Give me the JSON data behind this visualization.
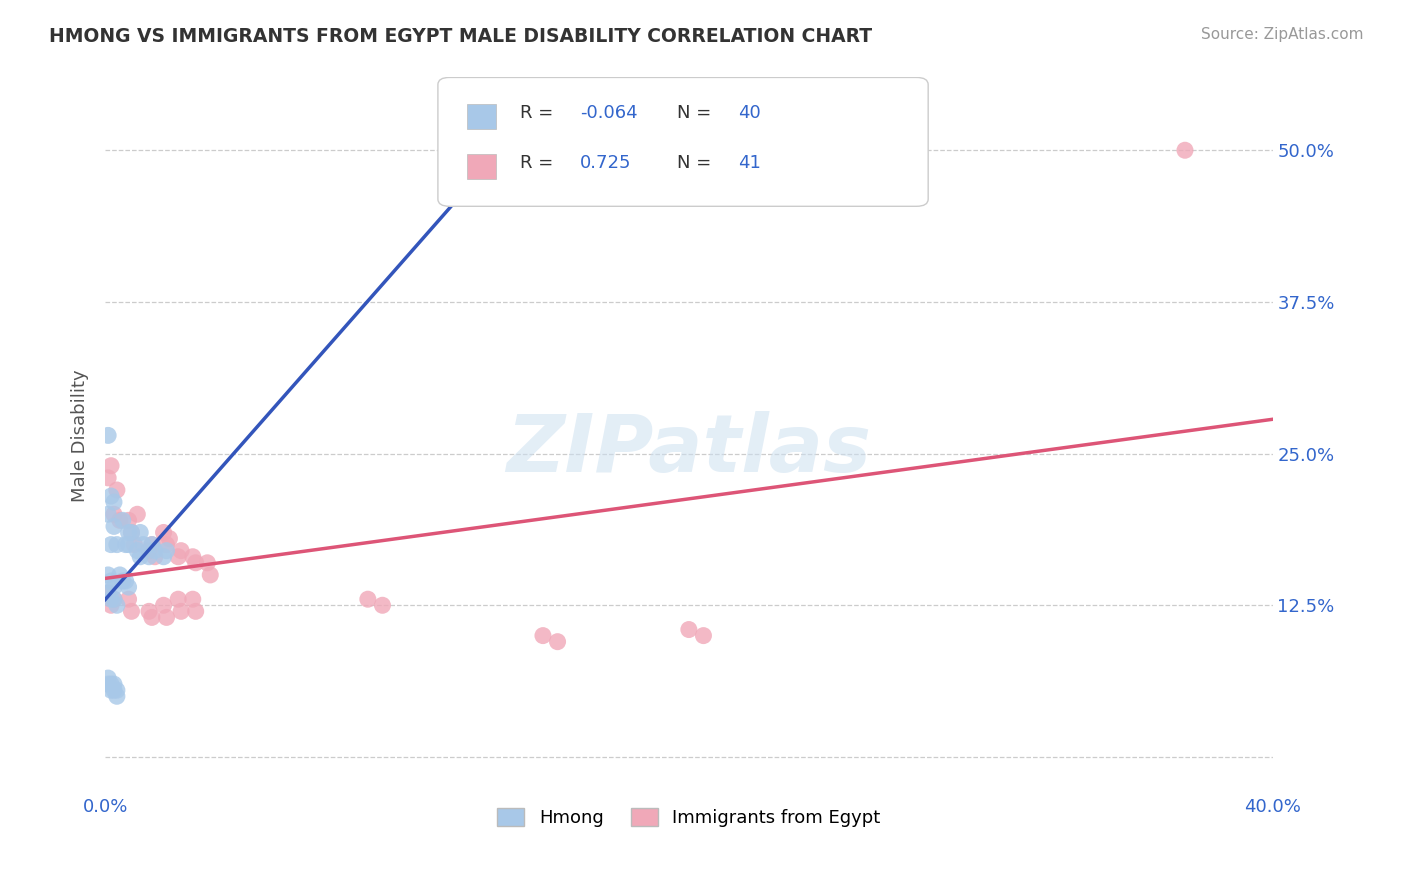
{
  "title": "HMONG VS IMMIGRANTS FROM EGYPT MALE DISABILITY CORRELATION CHART",
  "source": "Source: ZipAtlas.com",
  "ylabel": "Male Disability",
  "xlim": [
    0.0,
    0.4
  ],
  "ylim": [
    -0.03,
    0.56
  ],
  "xticks": [
    0.0,
    0.05,
    0.1,
    0.15,
    0.2,
    0.25,
    0.3,
    0.35,
    0.4
  ],
  "xticklabels": [
    "0.0%",
    "",
    "",
    "",
    "",
    "",
    "",
    "",
    "40.0%"
  ],
  "ytick_vals": [
    0.0,
    0.125,
    0.25,
    0.375,
    0.5
  ],
  "yticklabels_right": [
    "",
    "12.5%",
    "25.0%",
    "37.5%",
    "50.0%"
  ],
  "hmong_R": -0.064,
  "hmong_N": 40,
  "egypt_R": 0.725,
  "egypt_N": 41,
  "hmong_color": "#a8c8e8",
  "egypt_color": "#f0a8b8",
  "hmong_line_color": "#3355bb",
  "egypt_line_color": "#dd5577",
  "hmong_line_style": "solid",
  "egypt_line_style": "solid",
  "dashed_line_color": "#99bbdd",
  "watermark": "ZIPatlas",
  "background_color": "#ffffff",
  "grid_color": "#cccccc",
  "hmong_x": [
    0.002,
    0.001,
    0.003,
    0.002,
    0.001,
    0.004,
    0.003,
    0.008,
    0.007,
    0.006,
    0.009,
    0.008,
    0.012,
    0.011,
    0.013,
    0.012,
    0.016,
    0.015,
    0.017,
    0.021,
    0.02,
    0.001,
    0.002,
    0.003,
    0.005,
    0.006,
    0.007,
    0.008,
    0.001,
    0.002,
    0.003,
    0.004,
    0.001,
    0.002,
    0.003,
    0.004,
    0.001,
    0.002,
    0.003,
    0.004
  ],
  "hmong_y": [
    0.215,
    0.2,
    0.19,
    0.175,
    0.265,
    0.175,
    0.21,
    0.185,
    0.175,
    0.195,
    0.185,
    0.175,
    0.185,
    0.17,
    0.175,
    0.165,
    0.175,
    0.165,
    0.17,
    0.17,
    0.165,
    0.15,
    0.145,
    0.14,
    0.15,
    0.145,
    0.145,
    0.14,
    0.135,
    0.13,
    0.13,
    0.125,
    0.065,
    0.06,
    0.06,
    0.055,
    0.06,
    0.055,
    0.055,
    0.05
  ],
  "egypt_x": [
    0.001,
    0.002,
    0.003,
    0.004,
    0.005,
    0.008,
    0.009,
    0.01,
    0.011,
    0.015,
    0.016,
    0.017,
    0.02,
    0.021,
    0.022,
    0.025,
    0.026,
    0.03,
    0.031,
    0.035,
    0.036,
    0.001,
    0.002,
    0.003,
    0.008,
    0.009,
    0.015,
    0.016,
    0.02,
    0.021,
    0.025,
    0.026,
    0.03,
    0.031,
    0.09,
    0.095,
    0.15,
    0.155,
    0.2,
    0.205,
    0.37
  ],
  "egypt_y": [
    0.23,
    0.24,
    0.2,
    0.22,
    0.195,
    0.195,
    0.185,
    0.175,
    0.2,
    0.17,
    0.175,
    0.165,
    0.185,
    0.175,
    0.18,
    0.165,
    0.17,
    0.165,
    0.16,
    0.16,
    0.15,
    0.135,
    0.125,
    0.13,
    0.13,
    0.12,
    0.12,
    0.115,
    0.125,
    0.115,
    0.13,
    0.12,
    0.13,
    0.12,
    0.13,
    0.125,
    0.1,
    0.095,
    0.105,
    0.1,
    0.5
  ]
}
